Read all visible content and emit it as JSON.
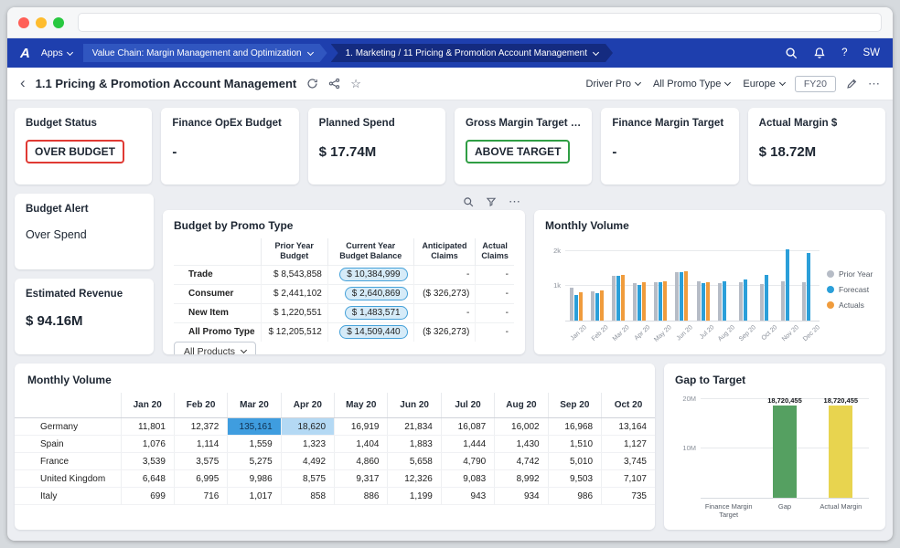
{
  "icons": {
    "back": "‹",
    "star": "☆",
    "more": "⋯",
    "help": "?"
  },
  "navbar": {
    "logo": "A",
    "apps_label": "Apps",
    "breadcrumb_app": "Value Chain: Margin Management and Optimization",
    "breadcrumb_page": "1. Marketing / 11 Pricing & Promotion Account Management",
    "avatar_initials": "SW"
  },
  "toolbar": {
    "title": "1.1 Pricing & Promotion Account Management",
    "filters": [
      "Driver Pro",
      "All Promo Type",
      "Europe"
    ],
    "period_chip": "FY20"
  },
  "kpis": [
    {
      "label": "Budget Status",
      "value": "OVER BUDGET",
      "style": "badge-red"
    },
    {
      "label": "Finance OpEx Budget",
      "value": "-",
      "style": "text"
    },
    {
      "label": "Planned Spend",
      "value": "$ 17.74M",
      "style": "text"
    },
    {
      "label": "Gross Margin Target Sta...",
      "value": "ABOVE TARGET",
      "style": "badge-green"
    },
    {
      "label": "Finance Margin Target",
      "value": "-",
      "style": "text"
    },
    {
      "label": "Actual Margin $",
      "value": "$ 18.72M",
      "style": "text"
    }
  ],
  "alert_cards": [
    {
      "label": "Budget Alert",
      "value": "Over Spend",
      "bold": false
    },
    {
      "label": "Estimated Revenue",
      "value": "$ 94.16M",
      "bold": true
    }
  ],
  "budget_table": {
    "title": "Budget by Promo Type",
    "columns": [
      "Prior Year Budget",
      "Current Year Budget Balance",
      "Anticipated Claims",
      "Actual Claims"
    ],
    "pill_column": 1,
    "rows": [
      {
        "label": "Trade",
        "cells": [
          "$ 8,543,858",
          "$ 10,384,999",
          "-",
          "-"
        ],
        "total": false
      },
      {
        "label": "Consumer",
        "cells": [
          "$ 2,441,102",
          "$ 2,640,869",
          "($ 326,273)",
          "-"
        ],
        "total": false
      },
      {
        "label": "New Item",
        "cells": [
          "$ 1,220,551",
          "$ 1,483,571",
          "-",
          "-"
        ],
        "total": false
      },
      {
        "label": "All Promo Type",
        "cells": [
          "$ 12,205,512",
          "$ 14,509,440",
          "($ 326,273)",
          "-"
        ],
        "total": true
      }
    ],
    "products_dropdown": "All Products"
  },
  "monthly_table": {
    "title": "Monthly Volume",
    "columns": [
      "Jan 20",
      "Feb 20",
      "Mar 20",
      "Apr 20",
      "May 20",
      "Jun 20",
      "Jul 20",
      "Aug 20",
      "Sep 20",
      "Oct 20"
    ],
    "rows": [
      {
        "label": "Germany",
        "values": [
          "11,801",
          "12,372",
          "135,161",
          "18,620",
          "16,919",
          "21,834",
          "16,087",
          "16,002",
          "16,968",
          "13,164"
        ]
      },
      {
        "label": "Spain",
        "values": [
          "1,076",
          "1,114",
          "1,559",
          "1,323",
          "1,404",
          "1,883",
          "1,444",
          "1,430",
          "1,510",
          "1,127"
        ]
      },
      {
        "label": "France",
        "values": [
          "3,539",
          "3,575",
          "5,275",
          "4,492",
          "4,860",
          "5,658",
          "4,790",
          "4,742",
          "5,010",
          "3,745"
        ]
      },
      {
        "label": "United Kingdom",
        "values": [
          "6,648",
          "6,995",
          "9,986",
          "8,575",
          "9,317",
          "12,326",
          "9,083",
          "8,992",
          "9,503",
          "7,107"
        ]
      },
      {
        "label": "Italy",
        "values": [
          "699",
          "716",
          "1,017",
          "858",
          "886",
          "1,199",
          "943",
          "934",
          "986",
          "735"
        ]
      }
    ],
    "highlights": [
      {
        "row": 0,
        "col": 2,
        "type": "strong"
      },
      {
        "row": 0,
        "col": 3,
        "type": "light"
      }
    ]
  },
  "chart_data": [
    {
      "type": "bar",
      "title": "Monthly Volume",
      "categories": [
        "Jan 20",
        "Feb 20",
        "Mar 20",
        "Apr 20",
        "May 20",
        "Jun 20",
        "Jul 20",
        "Aug 20",
        "Sep 20",
        "Oct 20",
        "Nov 20",
        "Dec 20"
      ],
      "series": [
        {
          "name": "Prior Year",
          "color": "#b6bcc6",
          "values": [
            950,
            840,
            1300,
            1080,
            1120,
            1400,
            1130,
            1090,
            1100,
            1060,
            1150,
            1100
          ]
        },
        {
          "name": "Forecast",
          "color": "#2b9fd9",
          "values": [
            730,
            790,
            1290,
            1030,
            1100,
            1390,
            1090,
            1150,
            1200,
            1310,
            2050,
            1950
          ]
        },
        {
          "name": "Actuals",
          "color": "#f09c3d",
          "values": [
            830,
            860,
            1310,
            1100,
            1150,
            1430,
            1120,
            0,
            0,
            0,
            0,
            0
          ]
        }
      ],
      "ylim": [
        0,
        2300
      ],
      "yticks": [
        {
          "label": "1k",
          "value": 1000
        },
        {
          "label": "2k",
          "value": 2000
        }
      ],
      "legend_position": "right"
    },
    {
      "type": "bar",
      "title": "Gap to Target",
      "categories": [
        "Finance Margin Target",
        "Gap",
        "Actual Margin"
      ],
      "values": [
        0,
        18720455,
        18720455
      ],
      "colors": [
        "#b6bcc6",
        "#55a061",
        "#e8d44f"
      ],
      "data_labels": [
        "",
        "18,720,455",
        "18,720,455"
      ],
      "ylim": [
        0,
        20000000
      ],
      "yticks": [
        {
          "label": "10M",
          "value": 10000000
        },
        {
          "label": "20M",
          "value": 20000000
        }
      ]
    }
  ]
}
